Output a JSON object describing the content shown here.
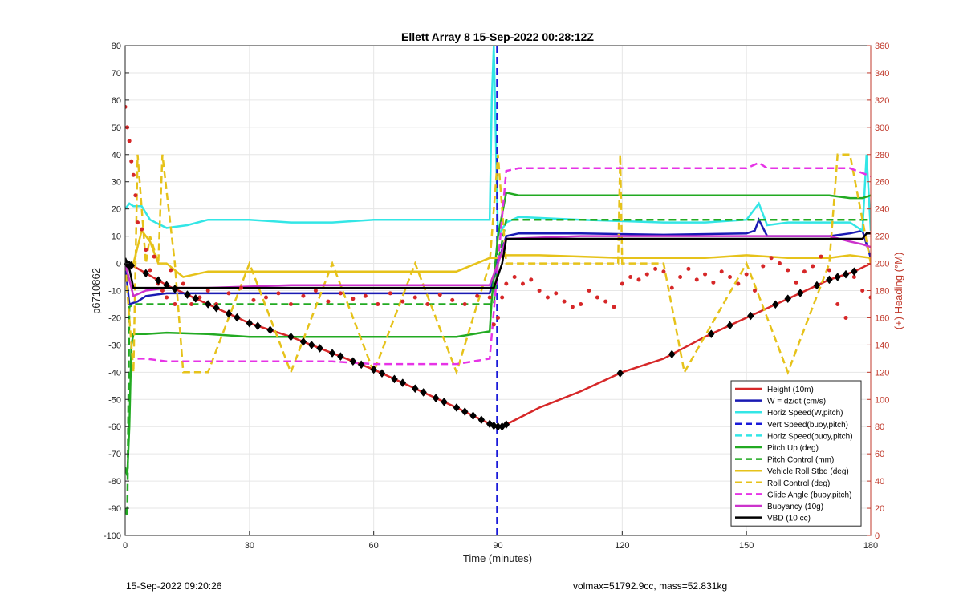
{
  "chart_data": {
    "type": "line",
    "title": "Ellett Array 8 15-Sep-2022 00:28:12Z",
    "xlabel": "Time (minutes)",
    "ylabel": "p6710862",
    "y2label": "(+) Heading (°M)",
    "xlim": [
      0,
      180
    ],
    "ylim": [
      -100,
      80
    ],
    "y2lim": [
      0,
      360
    ],
    "xticks": [
      0,
      30,
      60,
      90,
      120,
      150,
      180
    ],
    "yticks": [
      -100,
      -90,
      -80,
      -70,
      -60,
      -50,
      -40,
      -30,
      -20,
      -10,
      0,
      10,
      20,
      30,
      40,
      50,
      60,
      70,
      80
    ],
    "y2ticks": [
      0,
      20,
      40,
      60,
      80,
      100,
      120,
      140,
      160,
      180,
      200,
      220,
      240,
      260,
      280,
      300,
      320,
      340,
      360
    ],
    "grid": true,
    "legend_position": "bottom-right",
    "series": [
      {
        "name": "Height (10m)",
        "color": "#d62728",
        "dash": "solid",
        "x": [
          0,
          2,
          10,
          20,
          30,
          40,
          50,
          60,
          70,
          80,
          88,
          89.5,
          91,
          100,
          110,
          120,
          130,
          140,
          150,
          160,
          170,
          176,
          180
        ],
        "y": [
          0,
          -1,
          -8,
          -15,
          -22,
          -27,
          -33,
          -39,
          -46,
          -53,
          -59,
          -60,
          -60,
          -53,
          -47,
          -40,
          -35,
          -27,
          -20,
          -13,
          -6,
          -3,
          0
        ]
      },
      {
        "name": "W = dz/dt (cm/s)",
        "color": "#1a1ab3",
        "dash": "solid",
        "x": [
          0,
          1,
          3,
          5,
          10,
          20,
          40,
          60,
          80,
          88,
          90,
          92,
          95,
          110,
          130,
          150,
          152,
          153,
          155,
          170,
          175,
          178,
          180
        ],
        "y": [
          0,
          -15,
          -14,
          -12,
          -11,
          -11,
          -11,
          -11,
          -11,
          -11,
          0,
          10,
          11,
          11,
          10.5,
          11,
          12,
          16,
          10,
          10,
          11,
          12,
          2
        ]
      },
      {
        "name": "Horiz Speed(W,pitch)",
        "color": "#33e6e6",
        "dash": "solid",
        "x": [
          0,
          1,
          2,
          4,
          6,
          10,
          15,
          20,
          30,
          40,
          50,
          60,
          70,
          80,
          88,
          88.5,
          89,
          90,
          92,
          95,
          110,
          130,
          140,
          150,
          153,
          155,
          160,
          170,
          175,
          178,
          179,
          180
        ],
        "y": [
          20,
          22,
          21,
          21,
          16,
          13,
          14,
          16,
          16,
          15,
          15,
          16,
          16,
          16,
          16,
          60,
          80,
          10,
          15,
          17,
          16,
          15,
          15,
          16,
          22,
          14,
          15,
          15,
          15,
          12,
          40,
          12
        ]
      },
      {
        "name": "Vert Speed(buoy,pitch)",
        "color": "#1a1ad9",
        "dash": "dashed",
        "x": [
          89.8,
          89.8
        ],
        "y": [
          -100,
          80
        ]
      },
      {
        "name": "Horiz Speed(buoy,pitch)",
        "color": "#33e6e6",
        "dash": "dashed",
        "x": [
          0
        ],
        "y": [
          0
        ]
      },
      {
        "name": "Pitch Up (deg)",
        "color": "#22aa22",
        "dash": "solid",
        "x": [
          0,
          0.5,
          1,
          1.5,
          2,
          3,
          5,
          10,
          20,
          30,
          40,
          50,
          60,
          70,
          80,
          88,
          88.5,
          90,
          92,
          95,
          110,
          130,
          150,
          170,
          175,
          178,
          180
        ],
        "y": [
          -75,
          -78,
          -60,
          -30,
          -26,
          -26,
          -26,
          -25.5,
          -26,
          -27,
          -27,
          -27,
          -27,
          -27,
          -27,
          -25,
          -13,
          10,
          26,
          25,
          25,
          25,
          25,
          25,
          24,
          24,
          25
        ]
      },
      {
        "name": "Pitch Control (mm)",
        "color": "#22aa22",
        "dash": "dashed",
        "x": [
          0,
          0.5,
          1,
          2,
          3,
          88,
          89,
          90,
          92,
          180
        ],
        "y": [
          -90,
          -93,
          -16,
          -15,
          -15,
          -15,
          -15,
          0,
          16,
          16
        ]
      },
      {
        "name": "Vehicle Roll Stbd (deg)",
        "color": "#e6c21a",
        "dash": "solid",
        "x": [
          0,
          2,
          4,
          6,
          8,
          10,
          14,
          20,
          30,
          40,
          50,
          60,
          70,
          80,
          88,
          90,
          92,
          100,
          120,
          130,
          140,
          150,
          160,
          170,
          175,
          180
        ],
        "y": [
          0,
          0,
          12,
          8,
          0,
          0,
          -5,
          -3,
          -3,
          -3,
          -3,
          -3,
          -3,
          -3,
          2,
          2,
          3,
          3,
          2,
          2,
          2,
          3,
          2,
          2,
          3,
          2
        ]
      },
      {
        "name": "Roll Control (deg)",
        "color": "#e6c21a",
        "dash": "dashed",
        "x": [
          0,
          2,
          3,
          5,
          6,
          8,
          9,
          12,
          14,
          20,
          30,
          40,
          50,
          60,
          70,
          80,
          88,
          90,
          92,
          100,
          119,
          119.5,
          120,
          130,
          135,
          150,
          160,
          170,
          172,
          175,
          180
        ],
        "y": [
          0,
          -40,
          40,
          0,
          10,
          0,
          40,
          0,
          -40,
          -40,
          0,
          -40,
          0,
          -40,
          0,
          -40,
          0,
          40,
          0,
          0,
          0,
          40,
          0,
          0,
          -40,
          0,
          -40,
          0,
          40,
          40,
          0
        ]
      },
      {
        "name": "Glide Angle (buoy,pitch)",
        "color": "#e633e6",
        "dash": "dashed",
        "x": [
          3,
          5,
          10,
          20,
          30,
          40,
          50,
          60,
          70,
          80,
          88,
          90,
          92,
          95,
          110,
          130,
          150,
          153,
          155,
          170,
          175,
          180
        ],
        "y": [
          -35,
          -35,
          -36,
          -36,
          -36,
          -36,
          -36,
          -37,
          -37,
          -37,
          -35,
          0,
          34,
          35,
          35,
          35,
          35,
          37,
          35,
          35,
          35,
          32
        ]
      },
      {
        "name": "Buoyancy (10g)",
        "color": "#cc33cc",
        "dash": "solid",
        "x": [
          0,
          2,
          5,
          10,
          20,
          40,
          60,
          80,
          88,
          90,
          92,
          110,
          130,
          150,
          170,
          175,
          178,
          180
        ],
        "y": [
          0,
          -12,
          -10,
          -9,
          -9,
          -8,
          -8,
          -8,
          -8,
          0,
          9,
          10,
          10,
          10,
          10,
          8,
          7,
          6
        ]
      },
      {
        "name": "VBD (10 cc)",
        "color": "#000000",
        "dash": "solid",
        "x": [
          0,
          1,
          2,
          88,
          89,
          91,
          92,
          178,
          179,
          180
        ],
        "y": [
          2,
          -2,
          -9,
          -9,
          -9,
          0,
          9,
          9,
          11,
          11
        ]
      }
    ],
    "heading_points": {
      "color": "#d62728",
      "axis": "right",
      "x": [
        0,
        0.5,
        1,
        1.5,
        2,
        2.5,
        3,
        4,
        5,
        6,
        7,
        8,
        9,
        10,
        11,
        12,
        14,
        16,
        18,
        20,
        22,
        25,
        28,
        31,
        34,
        37,
        40,
        43,
        46,
        49,
        52,
        55,
        58,
        61,
        64,
        67,
        70,
        73,
        76,
        79,
        82,
        85,
        88,
        89,
        90,
        91,
        92,
        94,
        96,
        98,
        100,
        102,
        104,
        106,
        108,
        110,
        112,
        114,
        116,
        118,
        120,
        122,
        124,
        126,
        128,
        130,
        132,
        134,
        136,
        138,
        140,
        142,
        144,
        146,
        148,
        150,
        152,
        154,
        156,
        158,
        160,
        162,
        164,
        166,
        168,
        170,
        172,
        174,
        176,
        178,
        180
      ],
      "y": [
        315,
        300,
        290,
        275,
        265,
        250,
        230,
        225,
        210,
        195,
        205,
        185,
        180,
        175,
        195,
        170,
        185,
        170,
        175,
        180,
        170,
        178,
        182,
        173,
        175,
        178,
        170,
        176,
        180,
        172,
        178,
        174,
        176,
        170,
        178,
        172,
        175,
        170,
        177,
        173,
        170,
        176,
        175,
        155,
        160,
        175,
        185,
        190,
        185,
        188,
        180,
        175,
        178,
        172,
        168,
        170,
        180,
        175,
        172,
        168,
        185,
        190,
        188,
        192,
        196,
        194,
        182,
        190,
        196,
        188,
        192,
        186,
        194,
        190,
        185,
        192,
        180,
        198,
        204,
        200,
        195,
        186,
        194,
        198,
        205,
        195,
        170,
        160,
        190,
        180,
        175
      ]
    },
    "height_markers": {
      "x": [
        0.5,
        1,
        1.5,
        5,
        8,
        10,
        12,
        15,
        17,
        20,
        22,
        25,
        27,
        30,
        32,
        35,
        40,
        43,
        45,
        47,
        50,
        52,
        55,
        57,
        60,
        62,
        65,
        67,
        70,
        72,
        75,
        77,
        80,
        82,
        84,
        86,
        88,
        89,
        90,
        91,
        92,
        119.5,
        132,
        141.5,
        146,
        151,
        157,
        160,
        163,
        167,
        170,
        172,
        174,
        176
      ]
    }
  },
  "footer": {
    "left": "15-Sep-2022 09:20:26",
    "right": "volmax=51792.9cc, mass=52.831kg"
  }
}
